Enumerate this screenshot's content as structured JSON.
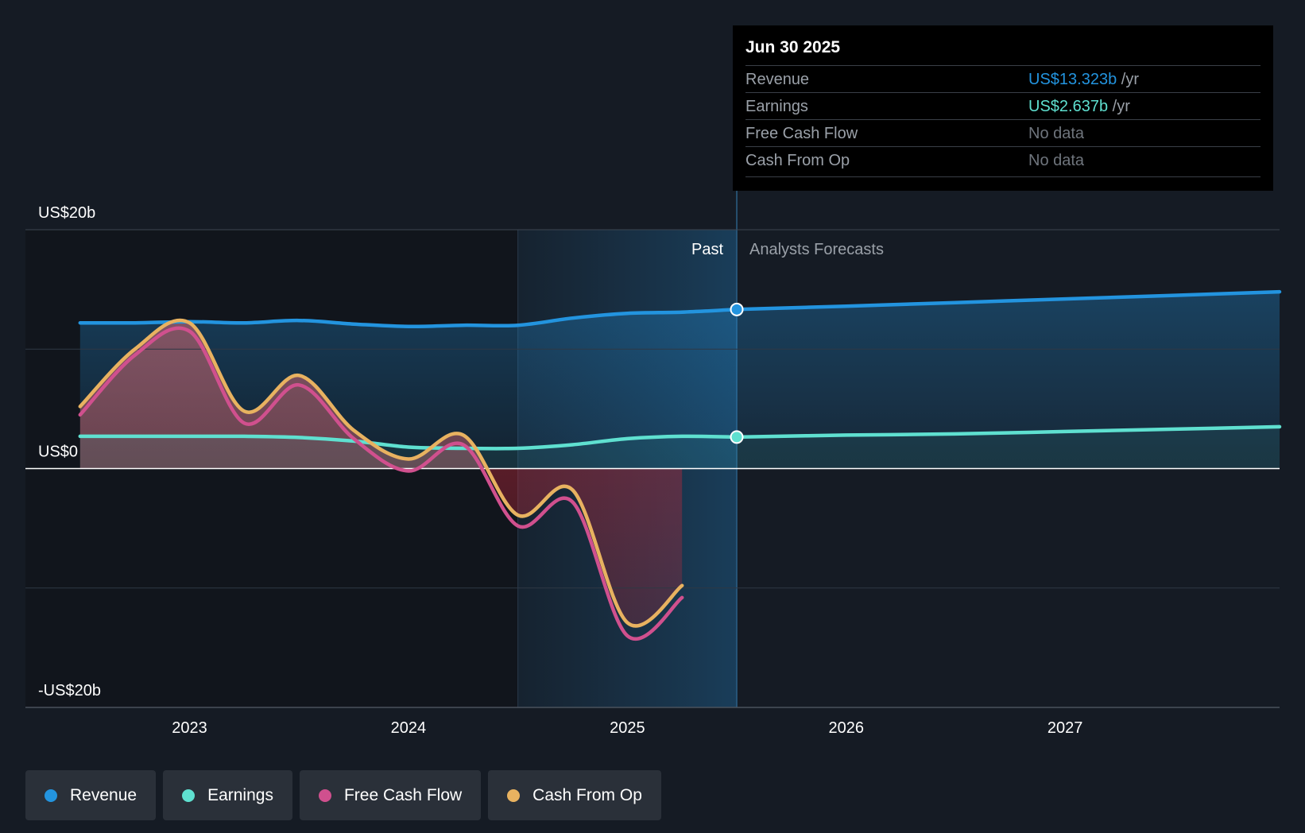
{
  "chart_data": {
    "type": "line",
    "x_unit": "year",
    "y_unit": "US$ billions",
    "ylim": [
      -20,
      20
    ],
    "y_ticks": [
      {
        "value": 20,
        "label": "US$20b"
      },
      {
        "value": 0,
        "label": "US$0"
      },
      {
        "value": -20,
        "label": "-US$20b"
      }
    ],
    "x_ticks": [
      {
        "value": 2023,
        "label": "2023"
      },
      {
        "value": 2024,
        "label": "2024"
      },
      {
        "value": 2025,
        "label": "2025"
      },
      {
        "value": 2026,
        "label": "2026"
      },
      {
        "value": 2027,
        "label": "2027"
      }
    ],
    "xlim": [
      2022.25,
      2027.98
    ],
    "past_label": "Past",
    "forecast_label": "Analysts Forecasts",
    "past_end": 2025.5,
    "highlight_start": 2024.5,
    "grid": true,
    "series": [
      {
        "name": "Revenue",
        "color": "#2394df",
        "x": [
          2022.5,
          2022.75,
          2023.0,
          2023.25,
          2023.5,
          2023.75,
          2024.0,
          2024.25,
          2024.5,
          2024.75,
          2025.0,
          2025.25,
          2025.5,
          2026.0,
          2026.5,
          2027.0,
          2027.5,
          2027.98
        ],
        "y": [
          12.2,
          12.2,
          12.3,
          12.2,
          12.4,
          12.1,
          11.9,
          12.0,
          12.0,
          12.6,
          13.0,
          13.1,
          13.323,
          13.6,
          13.9,
          14.2,
          14.5,
          14.8
        ],
        "forecast_from": 2025.5
      },
      {
        "name": "Earnings",
        "color": "#5fe0d0",
        "x": [
          2022.5,
          2022.75,
          2023.0,
          2023.25,
          2023.5,
          2023.75,
          2024.0,
          2024.25,
          2024.5,
          2024.75,
          2025.0,
          2025.25,
          2025.5,
          2026.0,
          2026.5,
          2027.0,
          2027.5,
          2027.98
        ],
        "y": [
          2.7,
          2.7,
          2.7,
          2.7,
          2.6,
          2.3,
          1.8,
          1.7,
          1.7,
          2.0,
          2.5,
          2.7,
          2.637,
          2.8,
          2.9,
          3.1,
          3.3,
          3.5
        ],
        "forecast_from": 2025.5
      },
      {
        "name": "Free Cash Flow",
        "color": "#d0508e",
        "x": [
          2022.5,
          2022.75,
          2023.0,
          2023.25,
          2023.5,
          2023.75,
          2024.0,
          2024.25,
          2024.5,
          2024.75,
          2025.0,
          2025.25
        ],
        "y": [
          4.5,
          9.5,
          11.5,
          3.8,
          7.0,
          2.5,
          -0.2,
          2.0,
          -4.8,
          -2.8,
          -14.0,
          -10.8
        ]
      },
      {
        "name": "Cash From Op",
        "color": "#e8b260",
        "x": [
          2022.5,
          2022.75,
          2023.0,
          2023.25,
          2023.5,
          2023.75,
          2024.0,
          2024.25,
          2024.5,
          2024.75,
          2025.0,
          2025.25
        ],
        "y": [
          5.2,
          10.0,
          12.2,
          4.8,
          7.8,
          3.2,
          0.8,
          2.8,
          -3.9,
          -1.8,
          -12.9,
          -9.8
        ]
      }
    ],
    "tooltip": {
      "date": "Jun 30 2025",
      "rows": [
        {
          "label": "Revenue",
          "value": "US$13.323b",
          "unit": "/yr",
          "color": "#2394df"
        },
        {
          "label": "Earnings",
          "value": "US$2.637b",
          "unit": "/yr",
          "color": "#5fe0d0"
        },
        {
          "label": "Free Cash Flow",
          "value": "No data",
          "unit": "",
          "color": "#6f757d"
        },
        {
          "label": "Cash From Op",
          "value": "No data",
          "unit": "",
          "color": "#6f757d"
        }
      ]
    },
    "legend": [
      {
        "label": "Revenue",
        "color": "#2394df"
      },
      {
        "label": "Earnings",
        "color": "#5fe0d0"
      },
      {
        "label": "Free Cash Flow",
        "color": "#d0508e"
      },
      {
        "label": "Cash From Op",
        "color": "#e8b260"
      }
    ]
  }
}
